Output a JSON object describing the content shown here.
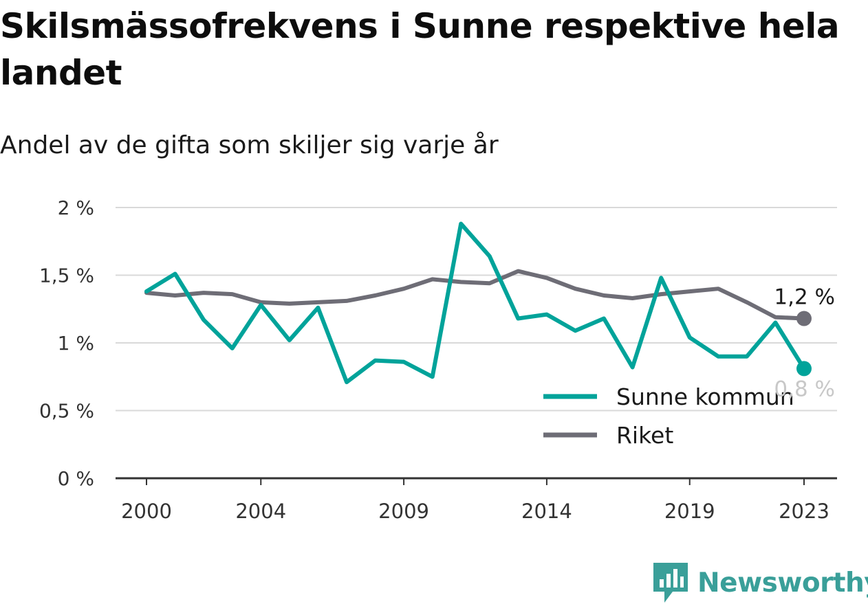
{
  "header": {
    "title": "Skilsmässofrekvens i Sunne respektive hela landet",
    "subtitle": "Andel av de gifta som skiljer sig varje år"
  },
  "brand": {
    "name": "Newsworthy",
    "icon": "newsworthy-logo-icon",
    "color": "#3a9f99"
  },
  "chart_data": {
    "type": "line",
    "x": [
      2000,
      2001,
      2002,
      2003,
      2004,
      2005,
      2006,
      2007,
      2008,
      2009,
      2010,
      2011,
      2012,
      2013,
      2014,
      2015,
      2016,
      2017,
      2018,
      2019,
      2020,
      2021,
      2022,
      2023
    ],
    "x_ticks": [
      2000,
      2004,
      2009,
      2014,
      2019,
      2023
    ],
    "y_ticks": [
      {
        "value": 0,
        "label": "0 %"
      },
      {
        "value": 0.5,
        "label": "0,5 %"
      },
      {
        "value": 1,
        "label": "1 %"
      },
      {
        "value": 1.5,
        "label": "1,5 %"
      },
      {
        "value": 2,
        "label": "2 %"
      }
    ],
    "ylim": [
      0,
      2
    ],
    "grid": true,
    "legend_position": "bottom-right",
    "series": [
      {
        "name": "Sunne kommun",
        "color": "#00a39a",
        "values": [
          1.38,
          1.51,
          1.17,
          0.96,
          1.28,
          1.02,
          1.26,
          0.71,
          0.87,
          0.86,
          0.75,
          1.88,
          1.64,
          1.18,
          1.21,
          1.09,
          1.18,
          0.82,
          1.48,
          1.04,
          0.9,
          0.9,
          1.15,
          0.81
        ],
        "end_label": "0,8 %"
      },
      {
        "name": "Riket",
        "color": "#6e6d76",
        "values": [
          1.37,
          1.35,
          1.37,
          1.36,
          1.3,
          1.29,
          1.3,
          1.31,
          1.35,
          1.4,
          1.47,
          1.45,
          1.44,
          1.53,
          1.48,
          1.4,
          1.35,
          1.33,
          1.36,
          1.38,
          1.4,
          1.3,
          1.19,
          1.18
        ],
        "end_label": "1,2 %"
      }
    ]
  }
}
